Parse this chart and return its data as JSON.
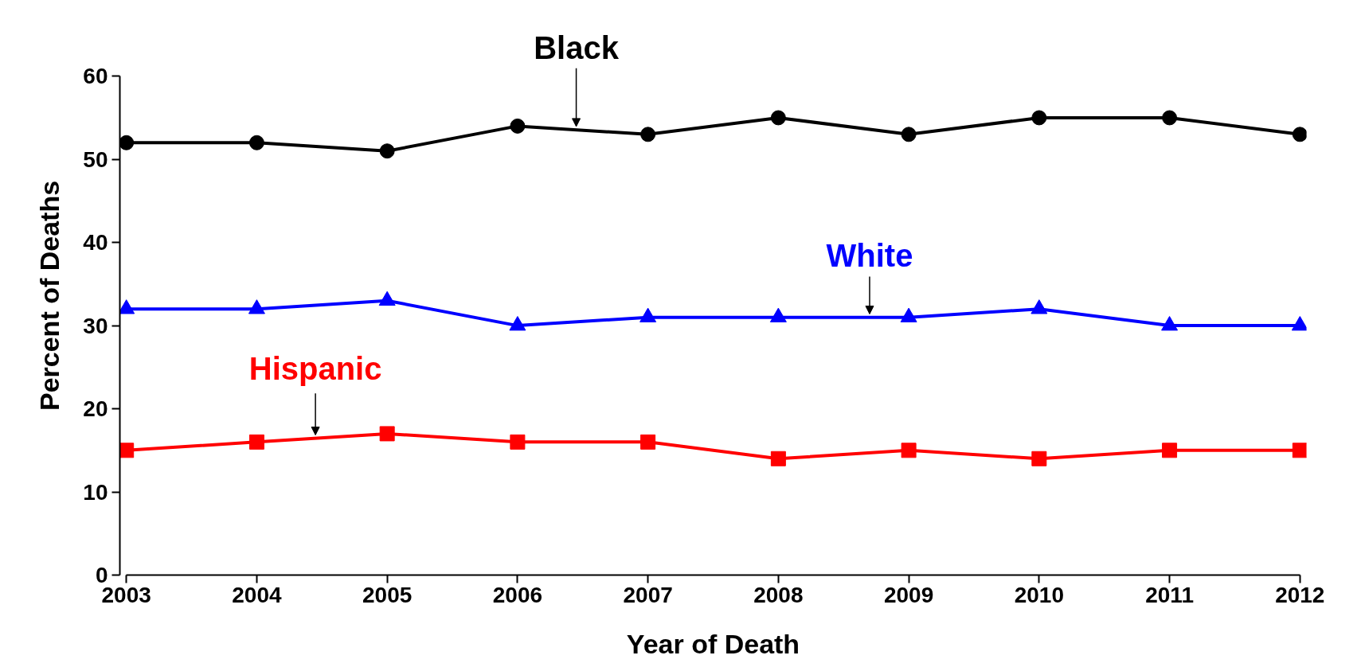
{
  "chart_data": {
    "type": "line",
    "xlabel": "Year of Death",
    "ylabel": "Percent of Deaths",
    "x": [
      2003,
      2004,
      2005,
      2006,
      2007,
      2008,
      2009,
      2010,
      2011,
      2012
    ],
    "series": [
      {
        "name": "Black",
        "color": "#000000",
        "marker": "circle",
        "values": [
          52,
          52,
          51,
          54,
          53,
          55,
          53,
          55,
          55,
          53
        ]
      },
      {
        "name": "White",
        "color": "#0000ff",
        "marker": "triangle",
        "values": [
          32,
          32,
          33,
          30,
          31,
          31,
          31,
          32,
          30,
          30
        ]
      },
      {
        "name": "Hispanic",
        "color": "#ff0000",
        "marker": "square",
        "values": [
          15,
          16,
          17,
          16,
          16,
          14,
          15,
          14,
          15,
          15
        ]
      }
    ],
    "xlim": [
      2003,
      2012
    ],
    "xticks": [
      2003,
      2004,
      2005,
      2006,
      2007,
      2008,
      2009,
      2010,
      2011,
      2012
    ],
    "ylim": [
      0,
      60
    ],
    "yticks": [
      0,
      10,
      20,
      30,
      40,
      50,
      60
    ],
    "grid": false,
    "legend": false,
    "line_style": "solid"
  }
}
